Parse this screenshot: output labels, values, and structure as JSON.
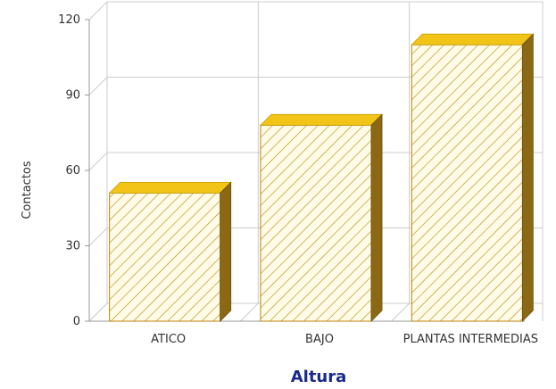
{
  "chart_data": {
    "type": "bar",
    "style": "3d-hatched",
    "categories": [
      "ATICO",
      "BAJO",
      "PLANTAS INTERMEDIAS"
    ],
    "values": [
      51,
      78,
      110
    ],
    "xlabel": "Altura",
    "ylabel": "Contactos",
    "ylim": [
      0,
      120
    ],
    "yticks": [
      0,
      30,
      60,
      90,
      120
    ],
    "grid": true,
    "legend": "none",
    "colors": {
      "bar_face": "#fffbe6",
      "bar_hatch": "#b8860b",
      "bar_top": "#f2c418",
      "bar_side": "#8b6914",
      "grid": "#cccccc",
      "xlabel": "#1a2a8a"
    }
  }
}
